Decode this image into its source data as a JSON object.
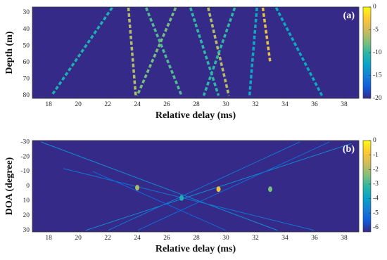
{
  "chart_data": [
    {
      "type": "heatmap",
      "panel_label": "(a)",
      "xlabel": "Relative delay (ms)",
      "ylabel": "Depth (m)",
      "xlim": [
        16.9,
        39
      ],
      "xticks": [
        18,
        20,
        22,
        24,
        26,
        28,
        30,
        32,
        34,
        36,
        38
      ],
      "ylim": [
        26.6,
        81.7
      ],
      "yticks": [
        30,
        40,
        50,
        60,
        70,
        80
      ],
      "y_inverted": true,
      "clim": [
        -20,
        0
      ],
      "cticks": [
        0,
        -5,
        -10,
        -15,
        -20
      ],
      "colormap": [
        "#352a87",
        "#0f5cdd",
        "#1481d6",
        "#06a4ca",
        "#2eb7a4",
        "#87bf77",
        "#d1bb59",
        "#fec832",
        "#f9fb0e"
      ],
      "style": "dashed",
      "traces": [
        {
          "x": [
            22.3,
            18.2
          ],
          "y": [
            27,
            80
          ],
          "value": -11
        },
        {
          "x": [
            23.4,
            23.9
          ],
          "y": [
            27,
            80
          ],
          "value": -6
        },
        {
          "x": [
            24.6,
            27
          ],
          "y": [
            27,
            80
          ],
          "value": -9
        },
        {
          "x": [
            26.6,
            24
          ],
          "y": [
            27,
            80
          ],
          "value": -8
        },
        {
          "x": [
            27.6,
            29.5
          ],
          "y": [
            27,
            80
          ],
          "value": -10
        },
        {
          "x": [
            28.8,
            30.2
          ],
          "y": [
            27,
            80
          ],
          "value": -6
        },
        {
          "x": [
            30.6,
            28.5
          ],
          "y": [
            27,
            80
          ],
          "value": -10
        },
        {
          "x": [
            32.5,
            33
          ],
          "y": [
            27,
            60
          ],
          "value": -4
        },
        {
          "x": [
            33.4,
            36.5
          ],
          "y": [
            27,
            80
          ],
          "value": -12
        },
        {
          "x": [
            32.1,
            31.6
          ],
          "y": [
            27,
            80
          ],
          "value": -12
        }
      ],
      "spots": []
    },
    {
      "type": "heatmap",
      "panel_label": "(b)",
      "xlabel": "Relative delay (ms)",
      "ylabel": "DOA (degree)",
      "xlim": [
        16.9,
        39
      ],
      "xticks": [
        18,
        20,
        22,
        24,
        26,
        28,
        30,
        32,
        34,
        36,
        38
      ],
      "ylim": [
        -31,
        31
      ],
      "yticks": [
        -30,
        -20,
        -10,
        0,
        10,
        20,
        30
      ],
      "y_inverted": true,
      "clim": [
        -6.3,
        0
      ],
      "cticks": [
        0,
        -1,
        -2,
        -3,
        -4,
        -5,
        -6
      ],
      "colormap": [
        "#352a87",
        "#0f5cdd",
        "#1481d6",
        "#06a4ca",
        "#2eb7a4",
        "#87bf77",
        "#d1bb59",
        "#fec832",
        "#f9fb0e"
      ],
      "style": "solid",
      "traces": [
        {
          "x": [
            17.5,
            33.5
          ],
          "y": [
            -30,
            30
          ],
          "value": -4.5
        },
        {
          "x": [
            38.5,
            20.5
          ],
          "y": [
            -29,
            30
          ],
          "value": -4.5
        },
        {
          "x": [
            35,
            22
          ],
          "y": [
            -30,
            30
          ],
          "value": -5
        },
        {
          "x": [
            19,
            36
          ],
          "y": [
            -12,
            30
          ],
          "value": -5
        },
        {
          "x": [
            37,
            24
          ],
          "y": [
            -30,
            30
          ],
          "value": -5.2
        },
        {
          "x": [
            21,
            30
          ],
          "y": [
            -10,
            30
          ],
          "value": -5.3
        }
      ],
      "spots": [
        {
          "x": 24,
          "y": 1,
          "value": -2
        },
        {
          "x": 29.5,
          "y": 2,
          "value": -1
        },
        {
          "x": 33,
          "y": 2,
          "value": -2.5
        },
        {
          "x": 27,
          "y": 8,
          "value": -3.5
        }
      ]
    }
  ]
}
